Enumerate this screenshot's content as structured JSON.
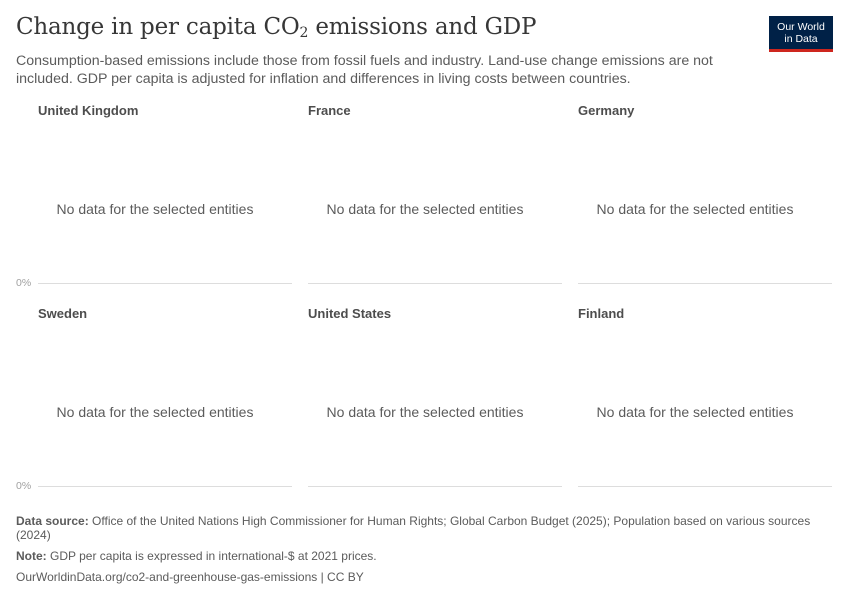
{
  "header": {
    "title_pre": "Change in per capita CO",
    "title_sub": "2",
    "title_post": " emissions and GDP",
    "subtitle": "Consumption-based emissions include those from fossil fuels and industry. Land-use change emissions are not included. GDP per capita is adjusted for inflation and differences in living costs between countries."
  },
  "logo": {
    "line1": "Our World",
    "line2": "in Data",
    "bg_color": "#002147",
    "accent_color": "#ce261e"
  },
  "chart_data": {
    "type": "line",
    "facets": [
      {
        "title": "United Kingdom",
        "message": "No data for the selected entities",
        "y_tick": "0%"
      },
      {
        "title": "France",
        "message": "No data for the selected entities",
        "y_tick": ""
      },
      {
        "title": "Germany",
        "message": "No data for the selected entities",
        "y_tick": ""
      },
      {
        "title": "Sweden",
        "message": "No data for the selected entities",
        "y_tick": "0%"
      },
      {
        "title": "United States",
        "message": "No data for the selected entities",
        "y_tick": ""
      },
      {
        "title": "Finland",
        "message": "No data for the selected entities",
        "y_tick": ""
      }
    ]
  },
  "footer": {
    "source_label": "Data source:",
    "source_text": " Office of the United Nations High Commissioner for Human Rights; Global Carbon Budget (2025); Population based on various sources (2024)",
    "note_label": "Note:",
    "note_text": " GDP per capita is expressed in international-$ at 2021 prices.",
    "url": "OurWorldinData.org/co2-and-greenhouse-gas-emissions | CC BY"
  }
}
